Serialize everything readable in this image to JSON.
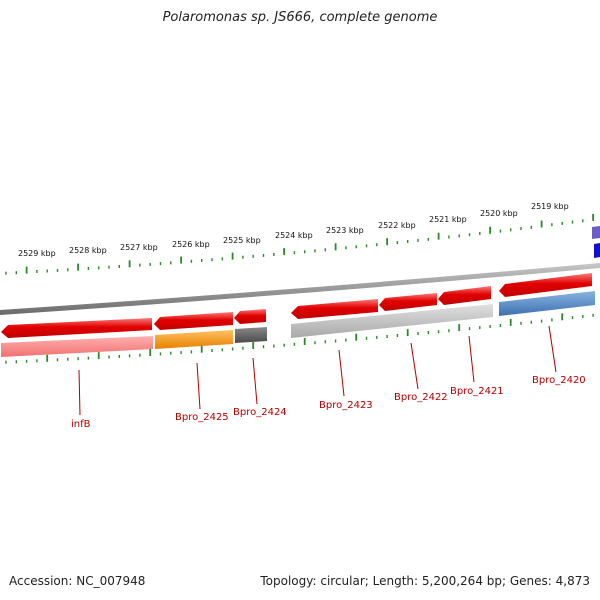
{
  "title": "Polaromonas sp. JS666, complete genome",
  "footer": {
    "accession": "Accession: NC_007948",
    "summary": "Topology: circular; Length: 5,200,264 bp; Genes: 4,873"
  },
  "kbp_labels": [
    "2529 kbp",
    "2528 kbp",
    "2527 kbp",
    "2526 kbp",
    "2525 kbp",
    "2524 kbp",
    "2523 kbp",
    "2522 kbp",
    "2521 kbp",
    "2520 kbp",
    "2519 kbp"
  ],
  "gene_labels": [
    "infB",
    "Bpro_2425",
    "Bpro_2424",
    "Bpro_2423",
    "Bpro_2422",
    "Bpro_2421",
    "Bpro_2420"
  ],
  "colors": {
    "cds": "#e01010",
    "tick": "#2a8a2a",
    "backbone": "#8a8a8a",
    "label": "#b00000",
    "orange": "#f08a00",
    "steel": "#4f86c0",
    "dark": "#5a5a5a",
    "gray": "#b8b8b8",
    "pink": "#f08080",
    "blue": "#1010d0",
    "purple": "#6b5bc8"
  }
}
